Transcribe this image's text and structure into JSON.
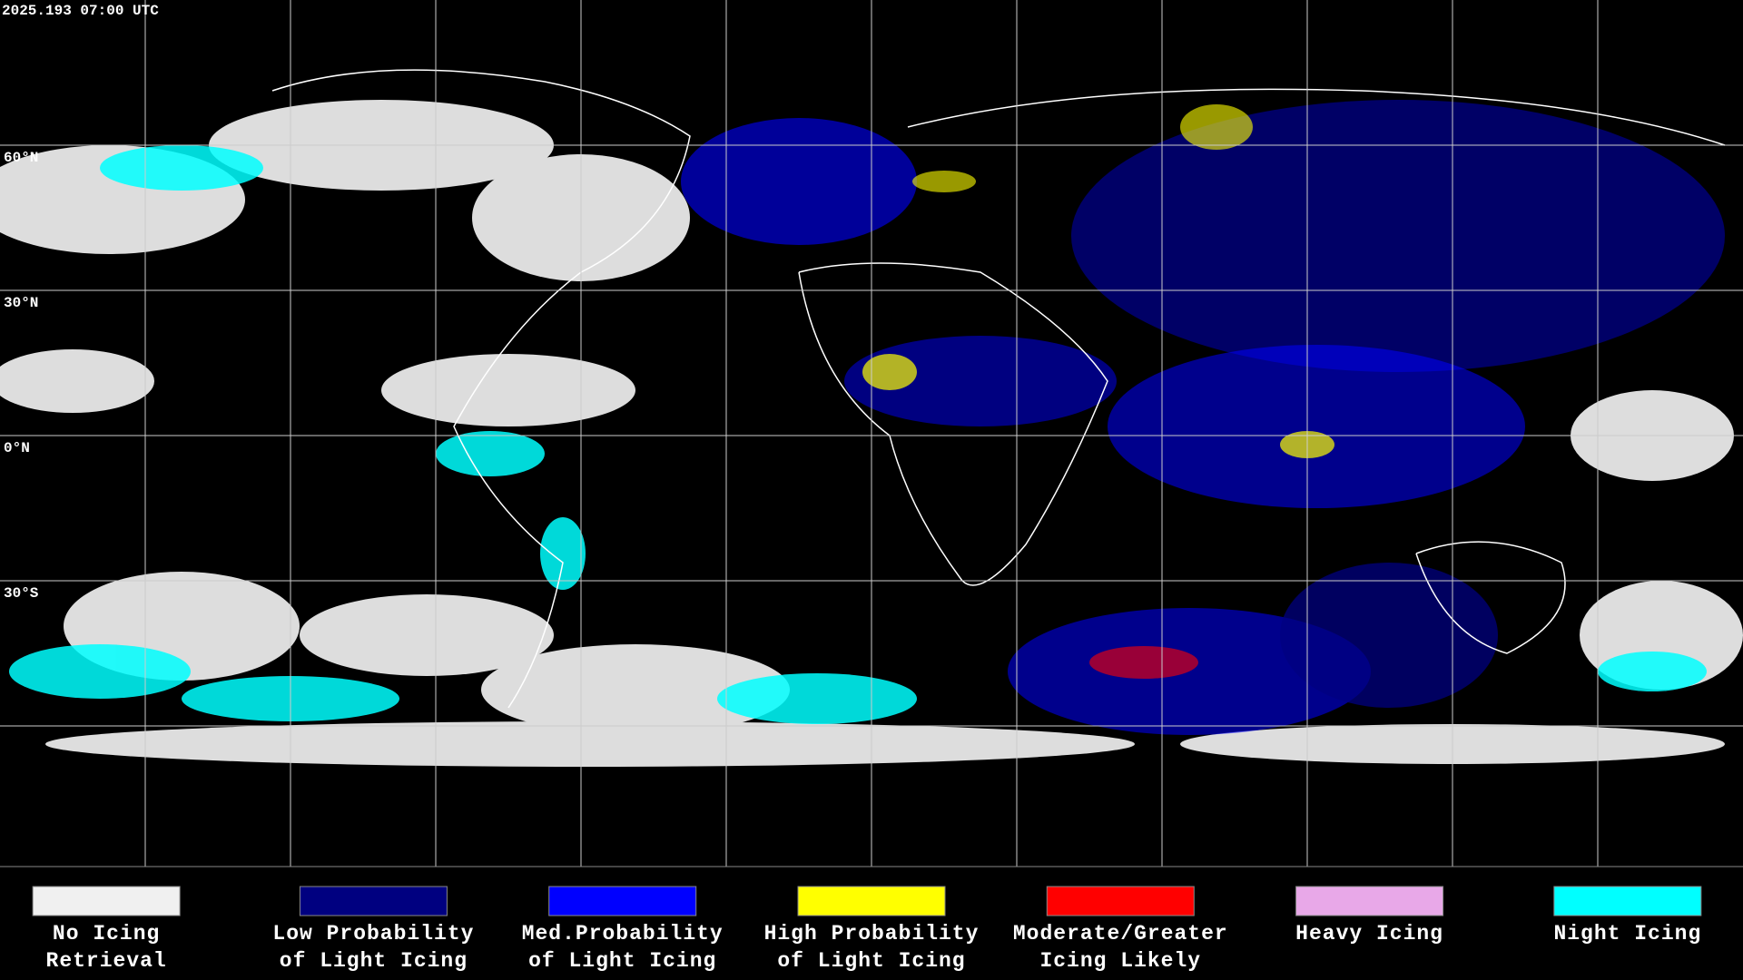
{
  "header": {
    "timestamp": "2025.193 07:00 UTC"
  },
  "lat_labels": [
    "60°N",
    "30°N",
    "0°N",
    "30°S"
  ],
  "legend": [
    {
      "color": "#f0f0f0",
      "lines": [
        "No Icing",
        "Retrieval"
      ]
    },
    {
      "color": "#000080",
      "lines": [
        "Low Probability",
        "of Light Icing"
      ]
    },
    {
      "color": "#0000ff",
      "lines": [
        "Med.Probability",
        "of Light Icing"
      ]
    },
    {
      "color": "#ffff00",
      "lines": [
        "High Probability",
        "of Light Icing"
      ]
    },
    {
      "color": "#ff0000",
      "lines": [
        "Moderate/Greater",
        "Icing Likely"
      ]
    },
    {
      "color": "#e8a8e8",
      "lines": [
        "Heavy Icing"
      ]
    },
    {
      "color": "#00ffff",
      "lines": [
        "Night Icing"
      ]
    }
  ]
}
